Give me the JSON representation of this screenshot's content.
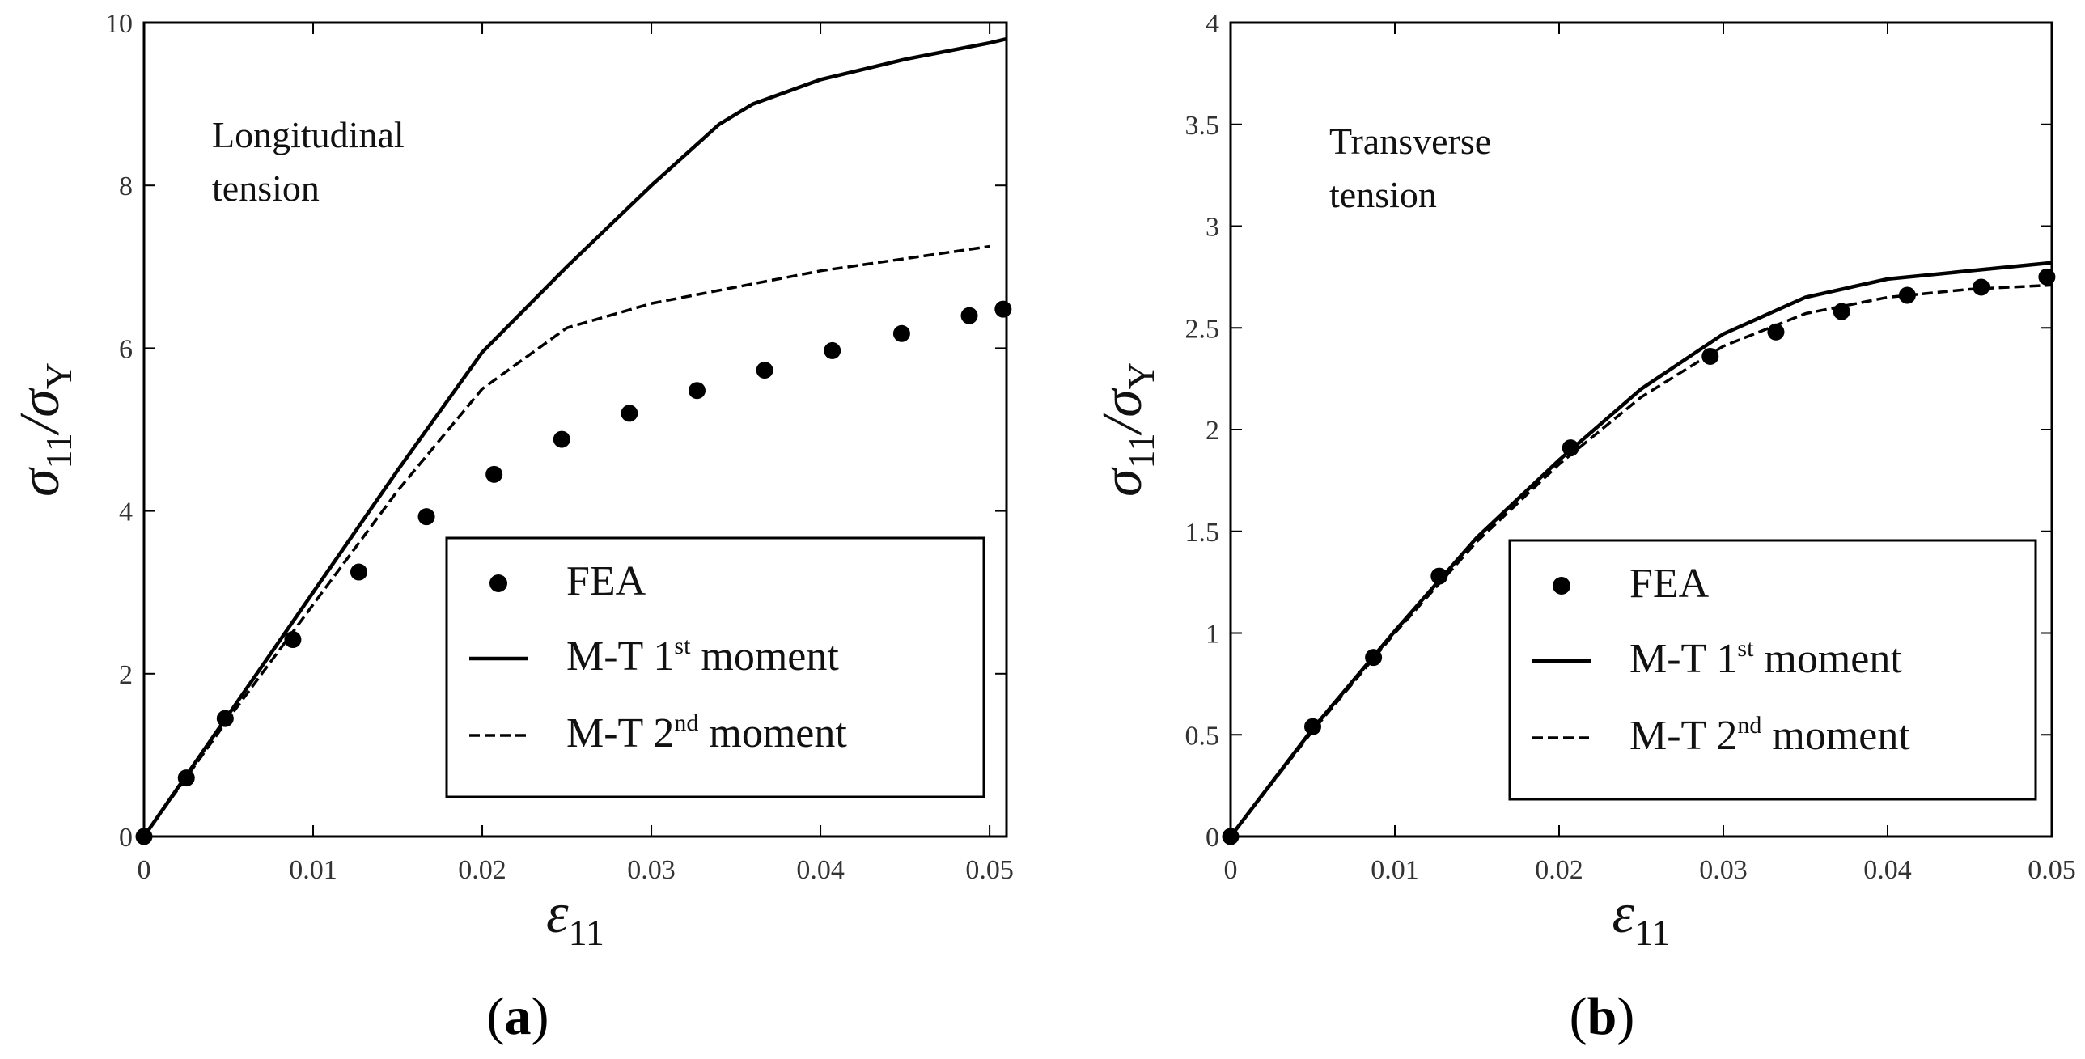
{
  "chart_data": [
    {
      "type": "line",
      "panel_label": "a",
      "annotation": [
        "Longitudinal",
        "tension"
      ],
      "xlabel": "ε",
      "xlabel_sub": "11",
      "ylabel_num": "σ",
      "ylabel_num_sub": "11",
      "ylabel_sep": "/",
      "ylabel_den": "σ",
      "ylabel_den_sub": "Y",
      "xlim": [
        0,
        0.051
      ],
      "ylim": [
        0,
        10
      ],
      "xticks": [
        0,
        0.01,
        0.02,
        0.03,
        0.04,
        0.05
      ],
      "xtick_labels": [
        "0",
        "0.01",
        "0.02",
        "0.03",
        "0.04",
        "0.05"
      ],
      "yticks": [
        0,
        2,
        4,
        6,
        8,
        10
      ],
      "ytick_labels": [
        "0",
        "2",
        "4",
        "6",
        "8",
        "10"
      ],
      "grid": false,
      "legend_position": "bottom-right",
      "series": [
        {
          "name": "FEA",
          "style": "markers",
          "x": [
            0,
            0.0025,
            0.0048,
            0.0088,
            0.0127,
            0.0167,
            0.0207,
            0.0247,
            0.0287,
            0.0327,
            0.0367,
            0.0407,
            0.0448,
            0.0488,
            0.0508
          ],
          "y": [
            0,
            0.72,
            1.45,
            2.42,
            3.25,
            3.93,
            4.45,
            4.88,
            5.2,
            5.48,
            5.73,
            5.97,
            6.18,
            6.4,
            6.48
          ]
        },
        {
          "name": "M-T 1st moment",
          "style": "solid",
          "x": [
            0,
            0.005,
            0.01,
            0.015,
            0.02,
            0.025,
            0.03,
            0.034,
            0.036,
            0.04,
            0.045,
            0.05,
            0.051
          ],
          "y": [
            0,
            1.5,
            3.0,
            4.5,
            5.95,
            7.0,
            8.0,
            8.75,
            9.0,
            9.3,
            9.55,
            9.75,
            9.8
          ]
        },
        {
          "name": "M-T 2nd moment",
          "style": "dashed",
          "x": [
            0,
            0.005,
            0.01,
            0.015,
            0.02,
            0.025,
            0.03,
            0.035,
            0.04,
            0.045,
            0.05
          ],
          "y": [
            0,
            1.45,
            2.85,
            4.25,
            5.5,
            6.25,
            6.55,
            6.75,
            6.95,
            7.1,
            7.25
          ]
        }
      ],
      "legend_entries": [
        {
          "text": "FEA",
          "sup": "",
          "rest": ""
        },
        {
          "text": "M-T 1",
          "sup": "st",
          "rest": " moment"
        },
        {
          "text": "M-T 2",
          "sup": "nd",
          "rest": " moment"
        }
      ]
    },
    {
      "type": "line",
      "panel_label": "b",
      "annotation": [
        "Transverse",
        "tension"
      ],
      "xlabel": "ε",
      "xlabel_sub": "11",
      "ylabel_num": "σ",
      "ylabel_num_sub": "11",
      "ylabel_sep": "/",
      "ylabel_den": "σ",
      "ylabel_den_sub": "Y",
      "xlim": [
        0,
        0.05
      ],
      "ylim": [
        0,
        4
      ],
      "xticks": [
        0,
        0.01,
        0.02,
        0.03,
        0.04,
        0.05
      ],
      "xtick_labels": [
        "0",
        "0.01",
        "0.02",
        "0.03",
        "0.04",
        "0.05"
      ],
      "yticks": [
        0,
        0.5,
        1,
        1.5,
        2,
        2.5,
        3,
        3.5,
        4
      ],
      "ytick_labels": [
        "0",
        "0.5",
        "1",
        "1.5",
        "2",
        "2.5",
        "3",
        "3.5",
        "4"
      ],
      "grid": false,
      "legend_position": "bottom-right",
      "series": [
        {
          "name": "FEA",
          "style": "markers",
          "x": [
            0,
            0.005,
            0.0087,
            0.0127,
            0.0207,
            0.0292,
            0.0332,
            0.0372,
            0.0412,
            0.0457,
            0.0497
          ],
          "y": [
            0,
            0.54,
            0.88,
            1.28,
            1.91,
            2.36,
            2.48,
            2.58,
            2.66,
            2.7,
            2.75
          ]
        },
        {
          "name": "M-T 1st moment",
          "style": "solid",
          "x": [
            0,
            0.005,
            0.01,
            0.015,
            0.02,
            0.025,
            0.03,
            0.035,
            0.04,
            0.045,
            0.05
          ],
          "y": [
            0,
            0.53,
            1.01,
            1.47,
            1.85,
            2.2,
            2.47,
            2.65,
            2.74,
            2.78,
            2.82
          ]
        },
        {
          "name": "M-T 2nd moment",
          "style": "dashed",
          "x": [
            0,
            0.005,
            0.01,
            0.015,
            0.02,
            0.025,
            0.03,
            0.035,
            0.04,
            0.045,
            0.05
          ],
          "y": [
            0,
            0.52,
            1.0,
            1.45,
            1.83,
            2.16,
            2.41,
            2.57,
            2.65,
            2.69,
            2.71
          ]
        }
      ],
      "legend_entries": [
        {
          "text": "FEA",
          "sup": "",
          "rest": ""
        },
        {
          "text": "M-T 1",
          "sup": "st",
          "rest": " moment"
        },
        {
          "text": "M-T 2",
          "sup": "nd",
          "rest": " moment"
        }
      ]
    }
  ]
}
